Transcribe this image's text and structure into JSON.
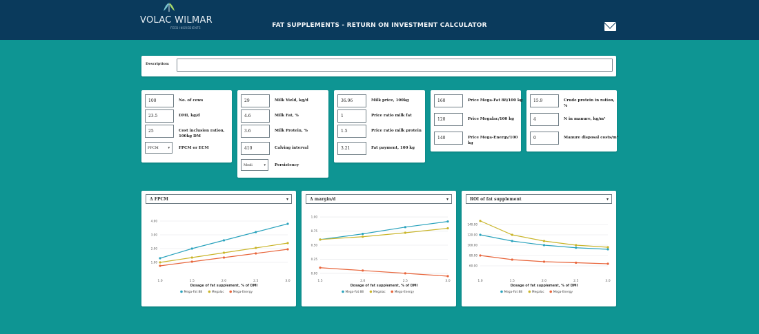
{
  "header": {
    "logo_text": "VOLAC WILMAR",
    "logo_sub": "FEED INGREDIENTS",
    "title": "FAT SUPPLEMENTS - RETURN ON INVESTMENT CALCULATOR",
    "mail_icon": "mail-icon"
  },
  "description": {
    "label": "Description:",
    "value": ""
  },
  "groups": [
    {
      "fields": [
        {
          "value": "100",
          "label": "No. of cows"
        },
        {
          "value": "23.5",
          "label": "DMI, kg/d"
        },
        {
          "value": "25",
          "label": "Cost inclusion ration, 100kg DM"
        },
        {
          "value": "FPCM",
          "label": "FPCM or ECM",
          "type": "select"
        }
      ]
    },
    {
      "fields": [
        {
          "value": "29",
          "label": "Milk Yield, kg/d"
        },
        {
          "value": "4.6",
          "label": "Milk Fat, %"
        },
        {
          "value": "3.6",
          "label": "Milk Protein, %"
        },
        {
          "value": "410",
          "label": "Calving interval"
        },
        {
          "value": "Medi",
          "label": "Persistency",
          "type": "select"
        }
      ]
    },
    {
      "fields": [
        {
          "value": "36.96",
          "label": "Milk price, 100kg"
        },
        {
          "value": "1",
          "label": "Price ratio milk fat"
        },
        {
          "value": "1.5",
          "label": "Price ratio milk protein"
        },
        {
          "value": "3.21",
          "label": "Fat payment, 100 kg"
        }
      ]
    },
    {
      "fields": [
        {
          "value": "160",
          "label": "Price Mega-Fat 88/100 kg"
        },
        {
          "value": "120",
          "label": "Price Megalac/100 kg"
        },
        {
          "value": "140",
          "label": "Price Mega-Energy/100 kg"
        }
      ]
    },
    {
      "fields": [
        {
          "value": "15.9",
          "label": "Crude protein in ration, %"
        },
        {
          "value": "4",
          "label": "N in manure, kg/m³"
        },
        {
          "value": "0",
          "label": "Manure disposal costs/m³"
        }
      ]
    }
  ],
  "colors": {
    "mega_fat_88": "#2ba3bd",
    "megalac": "#c9b52a",
    "mega_energy": "#e8653b"
  },
  "chart_data": [
    {
      "type": "line",
      "title": "Δ FPCM",
      "xlabel": "Dosage of fat supplement, % of DMI",
      "ylabel": "",
      "x": [
        1.0,
        1.5,
        2.0,
        2.5,
        3.0
      ],
      "xticks": [
        "1.0",
        "1.5",
        "2.0",
        "2.5",
        "3.0"
      ],
      "ylim": [
        0,
        4.5
      ],
      "yticks": [
        {
          "value": 1.0,
          "label": "1.00"
        },
        {
          "value": 2.0,
          "label": "2.00"
        },
        {
          "value": 3.0,
          "label": "3.00"
        },
        {
          "value": 4.0,
          "label": "4.00"
        }
      ],
      "series": [
        {
          "name": "Mega-Fat 88",
          "color": "#2ba3bd",
          "values": [
            1.3,
            2.0,
            2.6,
            3.2,
            3.8
          ]
        },
        {
          "name": "Megalac",
          "color": "#c9b52a",
          "values": [
            1.0,
            1.35,
            1.7,
            2.05,
            2.4
          ]
        },
        {
          "name": "Mega-Energy",
          "color": "#e8653b",
          "values": [
            0.75,
            1.05,
            1.35,
            1.65,
            1.95
          ]
        }
      ],
      "legend": "bottom"
    },
    {
      "type": "line",
      "title": "Δ margin/d",
      "xlabel": "Dosage of fat supplement, % of DMI",
      "ylabel": "",
      "x": [
        1.5,
        2.0,
        2.5,
        3.0
      ],
      "xticks": [
        "1.5",
        "2.0",
        "2.5",
        "3.0"
      ],
      "ylim": [
        -0.05,
        1.05
      ],
      "yticks": [
        {
          "value": 0.0,
          "label": "0.00"
        },
        {
          "value": 0.25,
          "label": "0.25"
        },
        {
          "value": 0.5,
          "label": "0.50"
        },
        {
          "value": 0.75,
          "label": "0.75"
        },
        {
          "value": 1.0,
          "label": "1.00"
        }
      ],
      "series": [
        {
          "name": "Mega-Fat 88",
          "color": "#2ba3bd",
          "values": [
            0.6,
            0.7,
            0.82,
            0.92
          ]
        },
        {
          "name": "Megalac",
          "color": "#c9b52a",
          "values": [
            0.6,
            0.65,
            0.72,
            0.8
          ]
        },
        {
          "name": "Mega-Energy",
          "color": "#e8653b",
          "values": [
            0.1,
            0.05,
            0.0,
            -0.05
          ]
        }
      ],
      "legend": "bottom"
    },
    {
      "type": "line",
      "title": "ROI of fat supplement",
      "xlabel": "Dosage of fat supplement, % of DMI",
      "ylabel": "",
      "x": [
        1.0,
        1.5,
        2.0,
        2.5,
        3.0
      ],
      "xticks": [
        "1.0",
        "1.5",
        "2.0",
        "2.5",
        "3.0"
      ],
      "ylim": [
        40,
        160
      ],
      "yticks": [
        {
          "value": 60,
          "label": "60.00"
        },
        {
          "value": 80,
          "label": "80.00"
        },
        {
          "value": 100,
          "label": "100.00"
        },
        {
          "value": 120,
          "label": "120.00"
        },
        {
          "value": 140,
          "label": "140.00"
        }
      ],
      "series": [
        {
          "name": "Mega-Fat 88",
          "color": "#2ba3bd",
          "values": [
            120,
            108,
            100,
            95,
            92
          ]
        },
        {
          "name": "Megalac",
          "color": "#c9b52a",
          "values": [
            147,
            120,
            108,
            100,
            96
          ]
        },
        {
          "name": "Mega-Energy",
          "color": "#e8653b",
          "values": [
            80,
            72,
            68,
            66,
            64
          ]
        }
      ],
      "legend": "bottom"
    }
  ]
}
